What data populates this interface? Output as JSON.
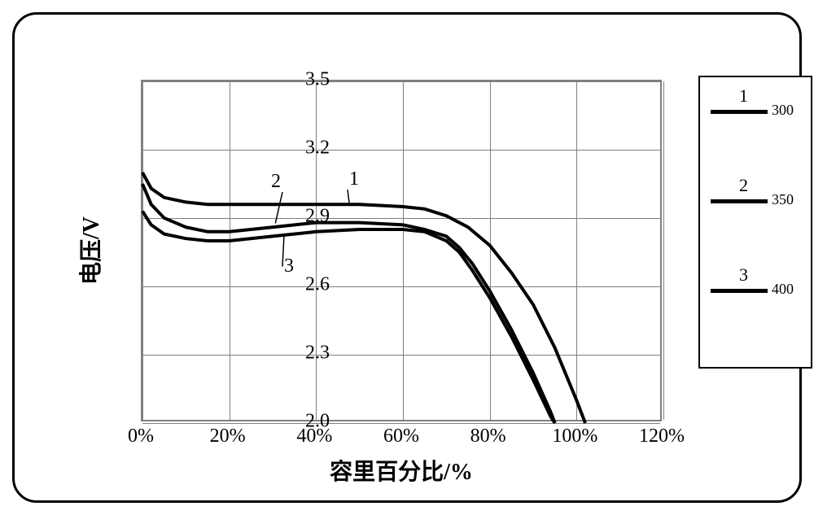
{
  "chart": {
    "type": "line",
    "background_color": "#ffffff",
    "border_color": "#000000",
    "border_radius": 30,
    "grid_color": "#808080",
    "x_axis": {
      "label": "容里百分比/%",
      "label_fontsize": 28,
      "min": 0,
      "max": 120,
      "tick_step": 20,
      "ticks": [
        "0%",
        "20%",
        "40%",
        "60%",
        "80%",
        "100%",
        "120%"
      ],
      "tick_fontsize": 24
    },
    "y_axis": {
      "label": "电压/V",
      "label_fontsize": 28,
      "min": 2.0,
      "max": 3.5,
      "tick_step": 0.3,
      "ticks": [
        "2.0",
        "2.3",
        "2.6",
        "2.9",
        "3.2",
        "3.5"
      ],
      "tick_fontsize": 24
    },
    "series": [
      {
        "id": "1",
        "legend_label": "300",
        "color": "#000000",
        "line_width": 4,
        "data": [
          [
            0,
            3.1
          ],
          [
            2,
            3.03
          ],
          [
            5,
            2.99
          ],
          [
            10,
            2.97
          ],
          [
            15,
            2.96
          ],
          [
            20,
            2.96
          ],
          [
            30,
            2.96
          ],
          [
            40,
            2.96
          ],
          [
            50,
            2.96
          ],
          [
            60,
            2.95
          ],
          [
            65,
            2.94
          ],
          [
            70,
            2.91
          ],
          [
            75,
            2.86
          ],
          [
            80,
            2.78
          ],
          [
            85,
            2.66
          ],
          [
            90,
            2.52
          ],
          [
            95,
            2.33
          ],
          [
            100,
            2.1
          ],
          [
            102,
            2.0
          ]
        ],
        "annotation": {
          "label": "1",
          "x_pct": 48,
          "y_volt": 3.06,
          "pointer_to": [
            48,
            2.96
          ]
        }
      },
      {
        "id": "2",
        "legend_label": "350",
        "color": "#000000",
        "line_width": 4,
        "data": [
          [
            0,
            3.05
          ],
          [
            2,
            2.96
          ],
          [
            5,
            2.9
          ],
          [
            10,
            2.86
          ],
          [
            15,
            2.84
          ],
          [
            20,
            2.84
          ],
          [
            30,
            2.86
          ],
          [
            40,
            2.88
          ],
          [
            50,
            2.88
          ],
          [
            60,
            2.87
          ],
          [
            65,
            2.85
          ],
          [
            70,
            2.82
          ],
          [
            73,
            2.77
          ],
          [
            76,
            2.7
          ],
          [
            80,
            2.58
          ],
          [
            85,
            2.41
          ],
          [
            90,
            2.22
          ],
          [
            94,
            2.05
          ],
          [
            95,
            2.0
          ]
        ],
        "annotation": {
          "label": "2",
          "x_pct": 30,
          "y_volt": 3.05,
          "pointer_to": [
            31,
            2.87
          ]
        }
      },
      {
        "id": "3",
        "legend_label": "400",
        "color": "#000000",
        "line_width": 4,
        "data": [
          [
            0,
            2.93
          ],
          [
            2,
            2.87
          ],
          [
            5,
            2.83
          ],
          [
            10,
            2.81
          ],
          [
            15,
            2.8
          ],
          [
            20,
            2.8
          ],
          [
            30,
            2.82
          ],
          [
            40,
            2.84
          ],
          [
            50,
            2.85
          ],
          [
            60,
            2.85
          ],
          [
            65,
            2.84
          ],
          [
            70,
            2.8
          ],
          [
            73,
            2.75
          ],
          [
            76,
            2.67
          ],
          [
            80,
            2.55
          ],
          [
            85,
            2.38
          ],
          [
            90,
            2.19
          ],
          [
            94,
            2.03
          ],
          [
            95,
            2.0
          ]
        ],
        "annotation": {
          "label": "3",
          "x_pct": 33,
          "y_volt": 2.68,
          "pointer_to": [
            33,
            2.82
          ]
        }
      }
    ],
    "legend": {
      "position": "right",
      "border_color": "#000000",
      "items": [
        {
          "num": "1",
          "text": "300"
        },
        {
          "num": "2",
          "text": "350"
        },
        {
          "num": "3",
          "text": "400"
        }
      ]
    }
  }
}
